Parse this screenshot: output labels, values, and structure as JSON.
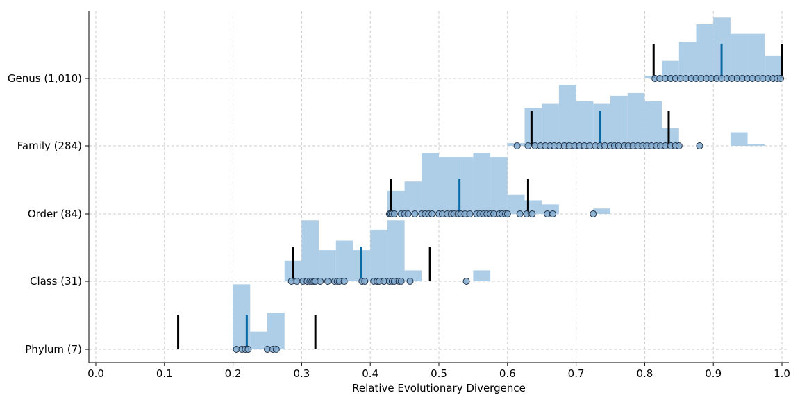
{
  "chart_data": {
    "type": "scatter",
    "title": "",
    "xlabel": "Relative Evolutionary Divergence",
    "ylabel": "",
    "xlim": [
      -0.01,
      1.01
    ],
    "xticks": [
      "0.0",
      "0.1",
      "0.2",
      "0.3",
      "0.4",
      "0.5",
      "0.6",
      "0.7",
      "0.8",
      "0.9",
      "1.0"
    ],
    "grid": true,
    "colors": {
      "histogram": "#aecde6",
      "point_fill": "#7fa8cc",
      "point_edge": "#1f2f45",
      "median_line": "#0a6aa6",
      "interval_line": "#000000",
      "grid": "#cccccc"
    },
    "ranks": [
      {
        "label": "Phylum (7)",
        "median": 0.22,
        "interval": [
          0.12,
          0.32
        ],
        "points": [
          0.205,
          0.213,
          0.218,
          0.222,
          0.25,
          0.258,
          0.263
        ],
        "histogram": {
          "bin_start": 0.2,
          "bin_width": 0.025,
          "heights": [
            0.48,
            0.13,
            0.27
          ]
        }
      },
      {
        "label": "Class (31)",
        "median": 0.387,
        "interval": [
          0.287,
          0.487
        ],
        "points": [
          0.285,
          0.293,
          0.302,
          0.308,
          0.312,
          0.315,
          0.318,
          0.32,
          0.327,
          0.338,
          0.348,
          0.352,
          0.355,
          0.362,
          0.388,
          0.392,
          0.405,
          0.41,
          0.413,
          0.42,
          0.428,
          0.432,
          0.435,
          0.442,
          0.445,
          0.458,
          0.54
        ],
        "histogram": {
          "bin_start": 0.275,
          "bin_width": 0.025,
          "heights": [
            0.15,
            0.45,
            0.23,
            0.3,
            0.23,
            0.38,
            0.45,
            0.08,
            0,
            0,
            0,
            0.08
          ]
        }
      },
      {
        "label": "Order (84)",
        "median": 0.53,
        "interval": [
          0.43,
          0.63
        ],
        "points": [
          0.428,
          0.43,
          0.432,
          0.435,
          0.445,
          0.45,
          0.455,
          0.465,
          0.475,
          0.48,
          0.485,
          0.49,
          0.5,
          0.505,
          0.512,
          0.518,
          0.522,
          0.528,
          0.532,
          0.538,
          0.545,
          0.555,
          0.56,
          0.565,
          0.57,
          0.575,
          0.58,
          0.588,
          0.592,
          0.597,
          0.6,
          0.618,
          0.628,
          0.636,
          0.658,
          0.666,
          0.725
        ],
        "histogram": {
          "bin_start": 0.425,
          "bin_width": 0.025,
          "heights": [
            0.17,
            0.24,
            0.45,
            0.42,
            0.42,
            0.45,
            0.42,
            0.14,
            0.1,
            0.07,
            0,
            0,
            0.04
          ]
        }
      },
      {
        "label": "Family (284)",
        "median": 0.735,
        "interval": [
          0.635,
          0.835
        ],
        "points": [
          0.614,
          0.63,
          0.64,
          0.648,
          0.655,
          0.662,
          0.668,
          0.675,
          0.683,
          0.69,
          0.698,
          0.705,
          0.712,
          0.72,
          0.728,
          0.735,
          0.742,
          0.75,
          0.756,
          0.762,
          0.77,
          0.776,
          0.783,
          0.79,
          0.797,
          0.803,
          0.81,
          0.817,
          0.823,
          0.83,
          0.838,
          0.845,
          0.85,
          0.88
        ],
        "histogram": {
          "bin_start": 0.6,
          "bin_width": 0.025,
          "heights": [
            0.02,
            0.28,
            0.31,
            0.45,
            0.33,
            0.31,
            0.37,
            0.39,
            0.33,
            0.13,
            0,
            0,
            0,
            0.1,
            0.01
          ]
        }
      },
      {
        "label": "Genus (1,010)",
        "median": 0.912,
        "interval": [
          0.813,
          1.0
        ],
        "points": [
          0.815,
          0.822,
          0.83,
          0.838,
          0.845,
          0.852,
          0.86,
          0.868,
          0.875,
          0.882,
          0.89,
          0.897,
          0.905,
          0.912,
          0.92,
          0.927,
          0.935,
          0.942,
          0.95,
          0.957,
          0.965,
          0.972,
          0.98,
          0.987,
          0.993,
          0.998
        ],
        "histogram": {
          "bin_start": 0.8,
          "bin_width": 0.025,
          "heights": [
            0.02,
            0.13,
            0.27,
            0.4,
            0.45,
            0.33,
            0.33,
            0.17
          ]
        }
      }
    ]
  }
}
